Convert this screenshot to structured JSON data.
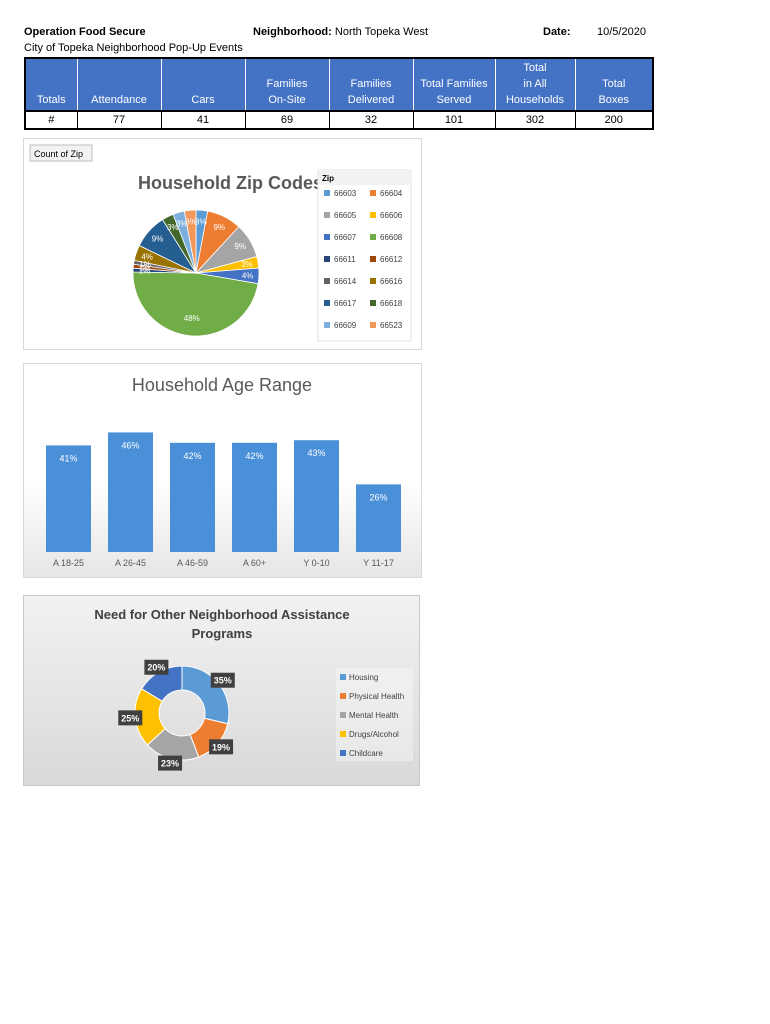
{
  "header": {
    "org_label": "Operation Food Secure",
    "subtitle": "City of Topeka Neighborhood Pop-Up Events",
    "neighborhood_label": "Neighborhood:",
    "neighborhood_value": "North Topeka West",
    "date_label": "Date:",
    "date_value": "10/5/2020"
  },
  "totals_table": {
    "columns": [
      [
        "Totals"
      ],
      [
        "Attendance"
      ],
      [
        "Cars"
      ],
      [
        "Families",
        "On-Site"
      ],
      [
        "Families",
        "Delivered"
      ],
      [
        "Total Families",
        "Served"
      ],
      [
        "Total",
        "in All",
        "Households"
      ],
      [
        "Total",
        "Boxes"
      ]
    ],
    "row": [
      "#",
      "77",
      "41",
      "69",
      "32",
      "101",
      "302",
      "200"
    ]
  },
  "chart_data": [
    {
      "type": "pie",
      "title": "Household Zip Codes",
      "button_label": "Count of Zip",
      "legend_title": "Zip",
      "legend": [
        "66603",
        "66604",
        "66605",
        "66606",
        "66607",
        "66608",
        "66611",
        "66612",
        "66614",
        "66616",
        "66617",
        "66618",
        "66609",
        "66523"
      ],
      "colors": [
        "#5b9bd5",
        "#ed7d31",
        "#a5a5a5",
        "#ffc000",
        "#4472c4",
        "#70ad47",
        "#264478",
        "#9e480e",
        "#636363",
        "#997300",
        "#255e91",
        "#43682b",
        "#7cafdd",
        "#f1975a"
      ],
      "slices": [
        {
          "label": "66603",
          "value": 3,
          "color": "#5b9bd5",
          "text": "3%"
        },
        {
          "label": "66604",
          "value": 9,
          "color": "#ed7d31",
          "text": "9%"
        },
        {
          "label": "66605",
          "value": 9,
          "color": "#a5a5a5",
          "text": "9%"
        },
        {
          "label": "66606",
          "value": 3,
          "color": "#ffc000",
          "text": "3%"
        },
        {
          "label": "66607",
          "value": 4,
          "color": "#4472c4",
          "text": "4%"
        },
        {
          "label": "66608",
          "value": 48,
          "color": "#70ad47",
          "text": "48%"
        },
        {
          "label": "66611",
          "value": 1,
          "color": "#264478",
          "text": "1%"
        },
        {
          "label": "66612",
          "value": 1,
          "color": "#9e480e",
          "text": "1%"
        },
        {
          "label": "66614",
          "value": 1,
          "color": "#636363",
          "text": "1%"
        },
        {
          "label": "66616",
          "value": 4,
          "color": "#997300",
          "text": "4%"
        },
        {
          "label": "66617",
          "value": 9,
          "color": "#255e91",
          "text": "9%"
        },
        {
          "label": "66618",
          "value": 3,
          "color": "#43682b",
          "text": "3%"
        },
        {
          "label": "66609",
          "value": 3,
          "color": "#7cafdd",
          "text": "3%"
        },
        {
          "label": "66523",
          "value": 3,
          "color": "#f1975a",
          "text": "3%"
        }
      ]
    },
    {
      "type": "bar",
      "title": "Household Age Range",
      "categories": [
        "A 18-25",
        "A 26-45",
        "A 46-59",
        "A 60+",
        "Y 0-10",
        "Y 11-17"
      ],
      "values": [
        41,
        46,
        42,
        42,
        43,
        26
      ],
      "labels": [
        "41%",
        "46%",
        "42%",
        "42%",
        "43%",
        "26%"
      ],
      "ylim": [
        0,
        50
      ],
      "color": "#4a90d9"
    },
    {
      "type": "pie",
      "variant": "doughnut",
      "title": "Need for Other Neighborhood Assistance Programs",
      "title_lines": [
        "Need for Other Neighborhood Assistance",
        "Programs"
      ],
      "categories": [
        "Housing",
        "Physical Health",
        "Mental Health",
        "Drugs/Alcohol",
        "Childcare"
      ],
      "values": [
        35,
        19,
        23,
        25,
        20
      ],
      "labels": [
        "35%",
        "19%",
        "23%",
        "25%",
        "20%"
      ],
      "colors": [
        "#5b9bd5",
        "#ed7d31",
        "#a5a5a5",
        "#ffc000",
        "#4472c4"
      ]
    }
  ]
}
